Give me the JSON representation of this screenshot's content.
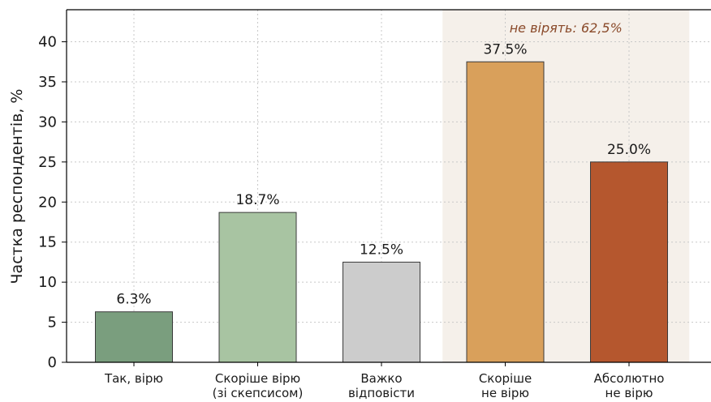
{
  "chart_data": {
    "type": "bar",
    "categories": [
      [
        "Так, вірю"
      ],
      [
        "Скоріше вірю",
        "(зі скепсисом)"
      ],
      [
        "Важко",
        "відповісти"
      ],
      [
        "Скоріше",
        "не вірю"
      ],
      [
        "Абсолютно",
        "не вірю"
      ]
    ],
    "values": [
      6.3,
      18.7,
      12.5,
      37.5,
      25.0
    ],
    "value_labels": [
      "6.3%",
      "18.7%",
      "12.5%",
      "37.5%",
      "25.0%"
    ],
    "colors": [
      "#7a9e7e",
      "#a8c4a2",
      "#cccccc",
      "#d9a05b",
      "#b5572e"
    ],
    "ylabel": "Частка респондентів, %",
    "ylim": [
      0,
      44
    ],
    "yticks": [
      0,
      5,
      10,
      15,
      20,
      25,
      30,
      35,
      40
    ],
    "grid": true,
    "highlight": {
      "from_index": 3,
      "to_index": 4,
      "label": "не вірять: 62,5%",
      "color": "#f5f0ea",
      "label_color": "#8a4a2a"
    }
  }
}
